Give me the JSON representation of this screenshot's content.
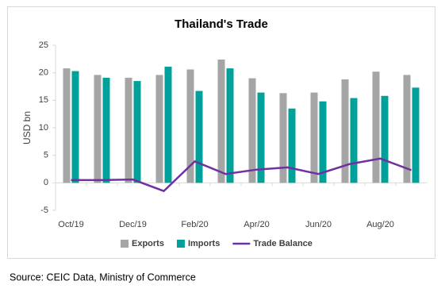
{
  "chart_data": {
    "type": "bar-line",
    "title": "Thailand's Trade",
    "y_label": "USD bn",
    "categories": [
      "Oct/19",
      null,
      "Dec/19",
      null,
      "Feb/20",
      null,
      "Apr/20",
      null,
      "Jun/20",
      null,
      "Aug/20",
      null
    ],
    "series": [
      {
        "name": "Exports",
        "type": "bar",
        "color": "#a5a5a5",
        "values": [
          20.8,
          19.6,
          19.1,
          19.6,
          20.6,
          22.4,
          19.0,
          16.3,
          16.4,
          18.8,
          20.2,
          19.6
        ]
      },
      {
        "name": "Imports",
        "type": "bar",
        "color": "#00a19a",
        "values": [
          20.3,
          19.1,
          18.5,
          21.1,
          16.7,
          20.8,
          16.4,
          13.5,
          14.8,
          15.4,
          15.8,
          17.3
        ]
      },
      {
        "name": "Trade Balance",
        "type": "line",
        "color": "#7030a0",
        "values": [
          0.5,
          0.5,
          0.6,
          -1.5,
          3.9,
          1.6,
          2.4,
          2.8,
          1.6,
          3.4,
          4.4,
          2.3
        ]
      }
    ],
    "ylim": [
      -5,
      25
    ],
    "yticks": [
      -5,
      0,
      5,
      10,
      15,
      20,
      25
    ],
    "grid": false,
    "legend": "bottom"
  },
  "source": "Source: CEIC Data, Ministry of Commerce"
}
